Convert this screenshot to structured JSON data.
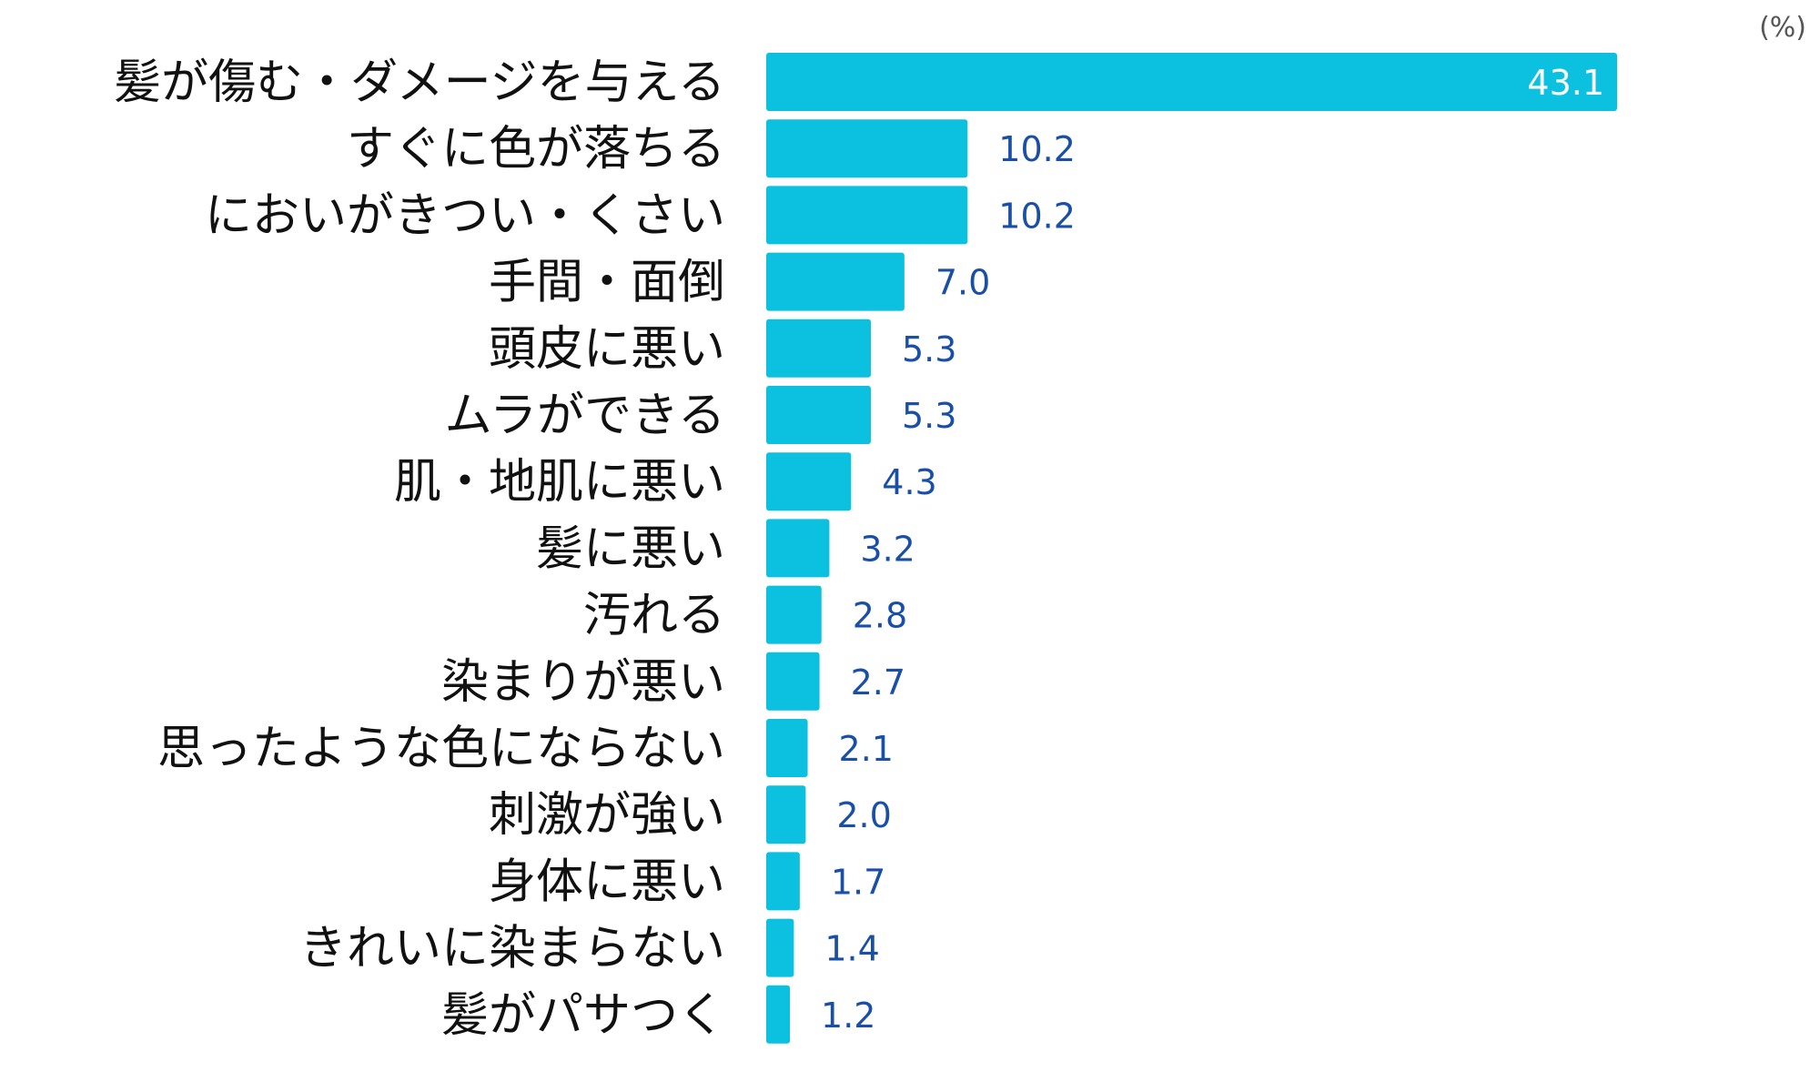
{
  "chart_data": {
    "type": "bar",
    "orientation": "horizontal",
    "unit": "(%)",
    "categories": [
      "髪が傷む・ダメージを与える",
      "すぐに色が落ちる",
      "においがきつい・くさい",
      "手間・面倒",
      "頭皮に悪い",
      "ムラができる",
      "肌・地肌に悪い",
      "髪に悪い",
      "汚れる",
      "染まりが悪い",
      "思ったような色にならない",
      "刺激が強い",
      "身体に悪い",
      "きれいに染まらない",
      "髪がパサつく"
    ],
    "values": [
      43.1,
      10.2,
      10.2,
      7.0,
      5.3,
      5.3,
      4.3,
      3.2,
      2.8,
      2.7,
      2.1,
      2.0,
      1.7,
      1.4,
      1.2
    ],
    "value_labels": [
      "43.1",
      "10.2",
      "10.2",
      "7.0",
      "5.3",
      "5.3",
      "4.3",
      "3.2",
      "2.8",
      "2.7",
      "2.1",
      "2.0",
      "1.7",
      "1.4",
      "1.2"
    ],
    "xlim": [
      0,
      43.1
    ],
    "grid": false,
    "legend": "none",
    "colors": {
      "bar": "#0cc0e0",
      "value_outside": "#1a4fa8",
      "value_inside": "#ffffff",
      "category_text": "#111111"
    }
  }
}
